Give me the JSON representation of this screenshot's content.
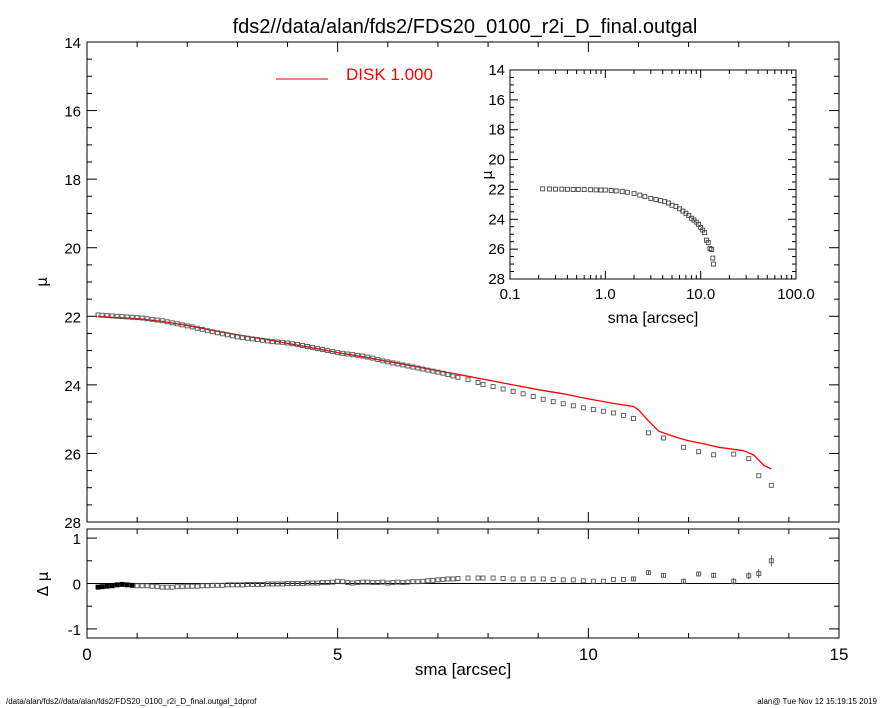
{
  "chart_data": [
    {
      "type": "scatter",
      "role": "main-profile",
      "title": "fds2//data/alan/fds2/FDS20_0100_r2i_D_final.outgal",
      "xlabel": "sma [arcsec]",
      "ylabel": "μ",
      "xlim": [
        0,
        15
      ],
      "ylim": [
        28,
        14
      ],
      "x_ticks": [
        "0",
        "5",
        "10",
        "15"
      ],
      "y_ticks": [
        "14",
        "16",
        "18",
        "20",
        "22",
        "24",
        "26",
        "28"
      ],
      "legend": {
        "label": "DISK  1.000",
        "color": "#ff0000",
        "position": "top-left"
      },
      "series": [
        {
          "kind": "points",
          "marker": "square",
          "color": "#555555",
          "x": [
            0.22,
            0.3,
            0.4,
            0.5,
            0.6,
            0.7,
            0.8,
            0.9,
            1.0,
            1.1,
            1.2,
            1.3,
            1.4,
            1.5,
            1.6,
            1.7,
            1.8,
            1.9,
            2.0,
            2.1,
            2.2,
            2.3,
            2.4,
            2.5,
            2.6,
            2.7,
            2.8,
            2.9,
            3.0,
            3.1,
            3.2,
            3.3,
            3.4,
            3.5,
            3.6,
            3.7,
            3.8,
            3.9,
            4.0,
            4.1,
            4.2,
            4.3,
            4.4,
            4.5,
            4.6,
            4.7,
            4.8,
            4.9,
            5.0,
            5.1,
            5.2,
            5.3,
            5.4,
            5.5,
            5.6,
            5.7,
            5.8,
            5.9,
            6.0,
            6.1,
            6.2,
            6.3,
            6.4,
            6.5,
            6.6,
            6.7,
            6.8,
            6.9,
            7.0,
            7.1,
            7.2,
            7.3,
            7.4,
            7.6,
            7.8,
            7.9,
            8.1,
            8.3,
            8.5,
            8.7,
            8.9,
            9.1,
            9.3,
            9.5,
            9.7,
            9.9,
            10.1,
            10.3,
            10.5,
            10.7,
            10.9,
            11.2,
            11.5,
            11.9,
            12.2,
            12.5,
            12.9,
            13.2,
            13.4,
            13.65
          ],
          "y": [
            21.96,
            21.97,
            21.98,
            21.99,
            22.0,
            22.01,
            22.02,
            22.03,
            22.04,
            22.05,
            22.07,
            22.09,
            22.11,
            22.13,
            22.16,
            22.19,
            22.22,
            22.25,
            22.28,
            22.31,
            22.35,
            22.38,
            22.42,
            22.45,
            22.48,
            22.51,
            22.54,
            22.57,
            22.6,
            22.62,
            22.64,
            22.66,
            22.68,
            22.7,
            22.72,
            22.74,
            22.75,
            22.76,
            22.78,
            22.8,
            22.82,
            22.85,
            22.88,
            22.91,
            22.94,
            22.97,
            23.0,
            23.03,
            23.06,
            23.08,
            23.1,
            23.12,
            23.14,
            23.16,
            23.19,
            23.22,
            23.26,
            23.3,
            23.33,
            23.36,
            23.39,
            23.42,
            23.45,
            23.48,
            23.51,
            23.54,
            23.57,
            23.6,
            23.63,
            23.66,
            23.7,
            23.74,
            23.78,
            23.85,
            23.93,
            23.99,
            24.05,
            24.12,
            24.19,
            24.26,
            24.34,
            24.42,
            24.49,
            24.55,
            24.61,
            24.67,
            24.72,
            24.77,
            24.82,
            24.89,
            24.98,
            25.4,
            25.55,
            25.82,
            25.95,
            26.04,
            26.02,
            26.15,
            26.65,
            26.93
          ]
        },
        {
          "kind": "line",
          "name": "DISK  1.000",
          "color": "#ff0000",
          "x": [
            0.22,
            0.5,
            1.0,
            1.5,
            2.0,
            2.5,
            3.0,
            3.5,
            4.0,
            4.5,
            5.0,
            5.5,
            6.0,
            6.5,
            7.0,
            7.5,
            8.0,
            8.5,
            9.0,
            9.5,
            10.0,
            10.5,
            10.9,
            11.0,
            11.2,
            11.4,
            11.6,
            11.8,
            12.0,
            12.3,
            12.6,
            12.9,
            13.1,
            13.3,
            13.5,
            13.65
          ],
          "y": [
            22.0,
            22.03,
            22.07,
            22.15,
            22.27,
            22.41,
            22.54,
            22.66,
            22.79,
            22.92,
            23.06,
            23.18,
            23.32,
            23.45,
            23.59,
            23.72,
            23.86,
            24.0,
            24.14,
            24.26,
            24.41,
            24.54,
            24.63,
            24.73,
            25.05,
            25.35,
            25.45,
            25.55,
            25.63,
            25.72,
            25.82,
            25.88,
            25.92,
            26.05,
            26.35,
            26.45
          ]
        }
      ]
    },
    {
      "type": "scatter",
      "role": "inset-log-profile",
      "xlabel": "sma [arcsec]",
      "ylabel": "μ",
      "xscale": "log",
      "xlim": [
        0.1,
        100
      ],
      "ylim": [
        28,
        14
      ],
      "x_ticks": [
        "0.1",
        "1.0",
        "10.0",
        "100.0"
      ],
      "y_ticks": [
        "14",
        "16",
        "18",
        "20",
        "22",
        "24",
        "26",
        "28"
      ],
      "series": [
        {
          "kind": "points",
          "marker": "square",
          "color": "#444444",
          "x": [
            0.22,
            0.26,
            0.3,
            0.35,
            0.4,
            0.46,
            0.52,
            0.6,
            0.7,
            0.8,
            0.9,
            1.0,
            1.15,
            1.3,
            1.5,
            1.7,
            2.0,
            2.3,
            2.6,
            3.0,
            3.4,
            3.8,
            4.2,
            4.6,
            5.0,
            5.5,
            6.0,
            6.5,
            7.0,
            7.5,
            8.0,
            8.5,
            9.0,
            9.5,
            10.0,
            10.5,
            11.0,
            11.5,
            12.0,
            12.5,
            13.0,
            13.4,
            13.65
          ],
          "y": [
            21.96,
            21.97,
            21.98,
            21.98,
            21.99,
            22.0,
            22.0,
            22.01,
            22.02,
            22.03,
            22.04,
            22.04,
            22.07,
            22.1,
            22.13,
            22.19,
            22.28,
            22.38,
            22.48,
            22.6,
            22.68,
            22.75,
            22.82,
            22.91,
            23.06,
            23.14,
            23.3,
            23.45,
            23.6,
            23.74,
            23.93,
            24.05,
            24.19,
            24.34,
            24.55,
            24.72,
            24.89,
            25.4,
            25.55,
            25.95,
            26.02,
            26.6,
            27.0
          ]
        }
      ]
    },
    {
      "type": "scatter",
      "role": "residuals",
      "xlabel": "sma [arcsec]",
      "ylabel": "Δ μ",
      "xlim": [
        0,
        15
      ],
      "ylim": [
        -1.2,
        1.2
      ],
      "y_ticks": [
        "1",
        "0",
        "-1"
      ],
      "series": [
        {
          "kind": "points",
          "marker": "square",
          "color": "#555555",
          "x": [
            0.22,
            0.3,
            0.4,
            0.5,
            0.6,
            0.7,
            0.8,
            0.9,
            1.0,
            1.1,
            1.2,
            1.3,
            1.4,
            1.5,
            1.6,
            1.7,
            1.8,
            1.9,
            2.0,
            2.1,
            2.2,
            2.3,
            2.4,
            2.5,
            2.6,
            2.7,
            2.8,
            2.9,
            3.0,
            3.1,
            3.2,
            3.3,
            3.4,
            3.5,
            3.6,
            3.7,
            3.8,
            3.9,
            4.0,
            4.1,
            4.2,
            4.3,
            4.4,
            4.5,
            4.6,
            4.7,
            4.8,
            4.9,
            5.0,
            5.1,
            5.2,
            5.3,
            5.4,
            5.5,
            5.6,
            5.7,
            5.8,
            5.9,
            6.0,
            6.1,
            6.2,
            6.3,
            6.4,
            6.5,
            6.6,
            6.7,
            6.8,
            6.9,
            7.0,
            7.1,
            7.2,
            7.3,
            7.4,
            7.6,
            7.8,
            7.9,
            8.1,
            8.3,
            8.5,
            8.7,
            8.9,
            9.1,
            9.3,
            9.5,
            9.7,
            9.9,
            10.1,
            10.3,
            10.5,
            10.7,
            10.9,
            11.2,
            11.5,
            11.9,
            12.2,
            12.5,
            12.9,
            13.2,
            13.4,
            13.65
          ],
          "y": [
            -0.08,
            -0.07,
            -0.06,
            -0.05,
            -0.03,
            -0.02,
            -0.03,
            -0.04,
            -0.05,
            -0.05,
            -0.05,
            -0.06,
            -0.07,
            -0.08,
            -0.08,
            -0.08,
            -0.07,
            -0.07,
            -0.06,
            -0.06,
            -0.06,
            -0.05,
            -0.05,
            -0.04,
            -0.04,
            -0.04,
            -0.03,
            -0.03,
            -0.03,
            -0.03,
            -0.02,
            -0.02,
            -0.02,
            -0.02,
            -0.01,
            -0.01,
            -0.01,
            -0.01,
            0.0,
            0.0,
            0.0,
            0.0,
            0.01,
            0.01,
            0.01,
            0.02,
            0.02,
            0.03,
            0.05,
            0.04,
            0.02,
            0.01,
            0.02,
            0.03,
            0.03,
            0.02,
            0.02,
            0.03,
            0.01,
            0.02,
            0.03,
            0.02,
            0.03,
            0.04,
            0.04,
            0.05,
            0.06,
            0.07,
            0.08,
            0.09,
            0.1,
            0.1,
            0.11,
            0.12,
            0.12,
            0.12,
            0.12,
            0.11,
            0.1,
            0.1,
            0.1,
            0.1,
            0.09,
            0.08,
            0.08,
            0.06,
            0.05,
            0.05,
            0.09,
            0.09,
            0.1,
            0.24,
            0.18,
            0.05,
            0.21,
            0.18,
            0.05,
            0.17,
            0.22,
            0.5
          ],
          "errors": [
            0.01,
            0.01,
            0.01,
            0.01,
            0.01,
            0.01,
            0.01,
            0.01,
            0.01,
            0.01,
            0.01,
            0.01,
            0.01,
            0.01,
            0.01,
            0.01,
            0.01,
            0.01,
            0.01,
            0.01,
            0.01,
            0.01,
            0.01,
            0.01,
            0.01,
            0.01,
            0.01,
            0.01,
            0.01,
            0.01,
            0.01,
            0.01,
            0.01,
            0.01,
            0.01,
            0.01,
            0.01,
            0.01,
            0.01,
            0.01,
            0.01,
            0.01,
            0.01,
            0.01,
            0.01,
            0.01,
            0.01,
            0.01,
            0.02,
            0.02,
            0.02,
            0.02,
            0.02,
            0.02,
            0.02,
            0.02,
            0.02,
            0.02,
            0.02,
            0.02,
            0.02,
            0.02,
            0.02,
            0.02,
            0.02,
            0.02,
            0.02,
            0.02,
            0.02,
            0.02,
            0.02,
            0.02,
            0.02,
            0.02,
            0.02,
            0.02,
            0.02,
            0.02,
            0.02,
            0.02,
            0.03,
            0.03,
            0.03,
            0.03,
            0.03,
            0.03,
            0.03,
            0.03,
            0.03,
            0.03,
            0.04,
            0.04,
            0.04,
            0.05,
            0.05,
            0.06,
            0.07,
            0.08,
            0.1,
            0.12
          ]
        }
      ]
    }
  ],
  "footer": {
    "left": "/data/alan/fds2//data/alan/fds2/FDS20_0100_r2i_D_final.outgal_1dprof",
    "right": "alan@  Tue Nov 12 15:19:15 2019"
  }
}
